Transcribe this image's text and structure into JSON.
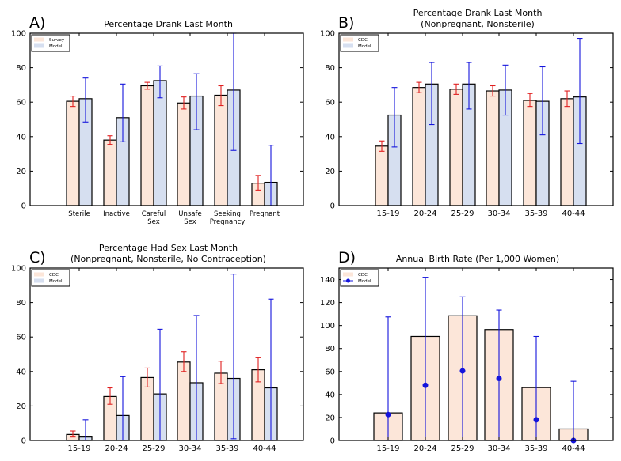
{
  "chart_data": [
    {
      "panel_label": "A)",
      "type": "bar",
      "title": "Percentage Drank Last Month",
      "categories": [
        [
          "Sterile"
        ],
        [
          "Inactive"
        ],
        [
          "Careful",
          "Sex"
        ],
        [
          "Unsafe",
          "Sex"
        ],
        [
          "Seeking",
          "Pregnancy"
        ],
        [
          "Pregnant"
        ]
      ],
      "xlabel": "",
      "ylabel": "",
      "ylim": [
        0,
        100
      ],
      "yticks": [
        0,
        20,
        40,
        60,
        80,
        100
      ],
      "legend_position": "top-left",
      "series": [
        {
          "name": "Survey",
          "fill": "#fce6d9",
          "err_color": "#e02020",
          "values": [
            60.5,
            38,
            69.5,
            59.5,
            64,
            13
          ],
          "err_low": [
            57.5,
            35.5,
            67.5,
            56,
            58,
            9
          ],
          "err_high": [
            63.5,
            40.5,
            71.5,
            63,
            69.5,
            17.5
          ]
        },
        {
          "name": "Model",
          "fill": "#d6dff0",
          "err_color": "#1414dc",
          "values": [
            62,
            51,
            72.5,
            63.5,
            67,
            13.5
          ],
          "err_low": [
            48.5,
            37,
            62.5,
            44,
            32,
            0
          ],
          "err_high": [
            74,
            70.5,
            81,
            76.5,
            100,
            35
          ]
        }
      ]
    },
    {
      "panel_label": "B)",
      "type": "bar",
      "title": "Percentage Drank Last Month\n(Nonpregnant, Nonsterile)",
      "categories": [
        [
          "15-19"
        ],
        [
          "20-24"
        ],
        [
          "25-29"
        ],
        [
          "30-34"
        ],
        [
          "35-39"
        ],
        [
          "40-44"
        ]
      ],
      "xlabel": "",
      "ylabel": "",
      "ylim": [
        0,
        100
      ],
      "yticks": [
        0,
        20,
        40,
        60,
        80,
        100
      ],
      "legend_position": "top-left",
      "series": [
        {
          "name": "CDC",
          "fill": "#fce6d9",
          "err_color": "#e02020",
          "values": [
            34.5,
            68.5,
            67.5,
            66.5,
            61,
            62
          ],
          "err_low": [
            31.5,
            65.5,
            64.5,
            63.5,
            57.5,
            57.5
          ],
          "err_high": [
            37.5,
            71.5,
            70.5,
            69.5,
            65,
            66.5
          ]
        },
        {
          "name": "Model",
          "fill": "#d6dff0",
          "err_color": "#1414dc",
          "values": [
            52.5,
            70.5,
            70.5,
            67,
            60.5,
            63
          ],
          "err_low": [
            34,
            47,
            56,
            52.5,
            41,
            36
          ],
          "err_high": [
            68.5,
            83,
            83,
            81.5,
            80.5,
            97
          ]
        }
      ]
    },
    {
      "panel_label": "C)",
      "type": "bar",
      "title": "Percentage Had Sex Last Month\n(Nonpregnant, Nonsterile, No Contraception)",
      "categories": [
        [
          "15-19"
        ],
        [
          "20-24"
        ],
        [
          "25-29"
        ],
        [
          "30-34"
        ],
        [
          "35-39"
        ],
        [
          "40-44"
        ]
      ],
      "xlabel": "",
      "ylabel": "",
      "ylim": [
        0,
        100
      ],
      "yticks": [
        0,
        20,
        40,
        60,
        80,
        100
      ],
      "legend_position": "top-left",
      "series": [
        {
          "name": "CDC",
          "fill": "#fce6d9",
          "err_color": "#e02020",
          "values": [
            3.5,
            25.5,
            36.5,
            45.5,
            39,
            41
          ],
          "err_low": [
            2,
            21,
            31,
            40,
            33,
            34
          ],
          "err_high": [
            5.5,
            30.5,
            42,
            51.5,
            46,
            48
          ]
        },
        {
          "name": "Model",
          "fill": "#d6dff0",
          "err_color": "#1414dc",
          "values": [
            2,
            14.5,
            27,
            33.5,
            36,
            30.5
          ],
          "err_low": [
            0,
            0,
            0,
            0,
            1,
            0
          ],
          "err_high": [
            12,
            37,
            64.5,
            72.5,
            96.5,
            82
          ]
        }
      ]
    },
    {
      "panel_label": "D)",
      "type": "bar",
      "title": "Annual Birth Rate (Per 1,000 Women)",
      "categories": [
        [
          "15-19"
        ],
        [
          "20-24"
        ],
        [
          "25-29"
        ],
        [
          "30-34"
        ],
        [
          "35-39"
        ],
        [
          "40-44"
        ]
      ],
      "xlabel": "",
      "ylabel": "",
      "ylim": [
        0,
        150
      ],
      "yticks": [
        0,
        20,
        40,
        60,
        80,
        100,
        120,
        140
      ],
      "legend_position": "top-left",
      "bars": {
        "name": "CDC",
        "fill": "#fce6d9",
        "values": [
          24,
          90.5,
          108.5,
          96.5,
          46,
          10
        ]
      },
      "points": {
        "name": "Model",
        "color": "#1414dc",
        "values": [
          22.5,
          48,
          60.5,
          54,
          18,
          0
        ],
        "err_low": [
          0,
          0,
          0,
          0,
          0,
          0
        ],
        "err_high": [
          107.5,
          142,
          125,
          113.5,
          90.5,
          51.5
        ]
      }
    }
  ]
}
